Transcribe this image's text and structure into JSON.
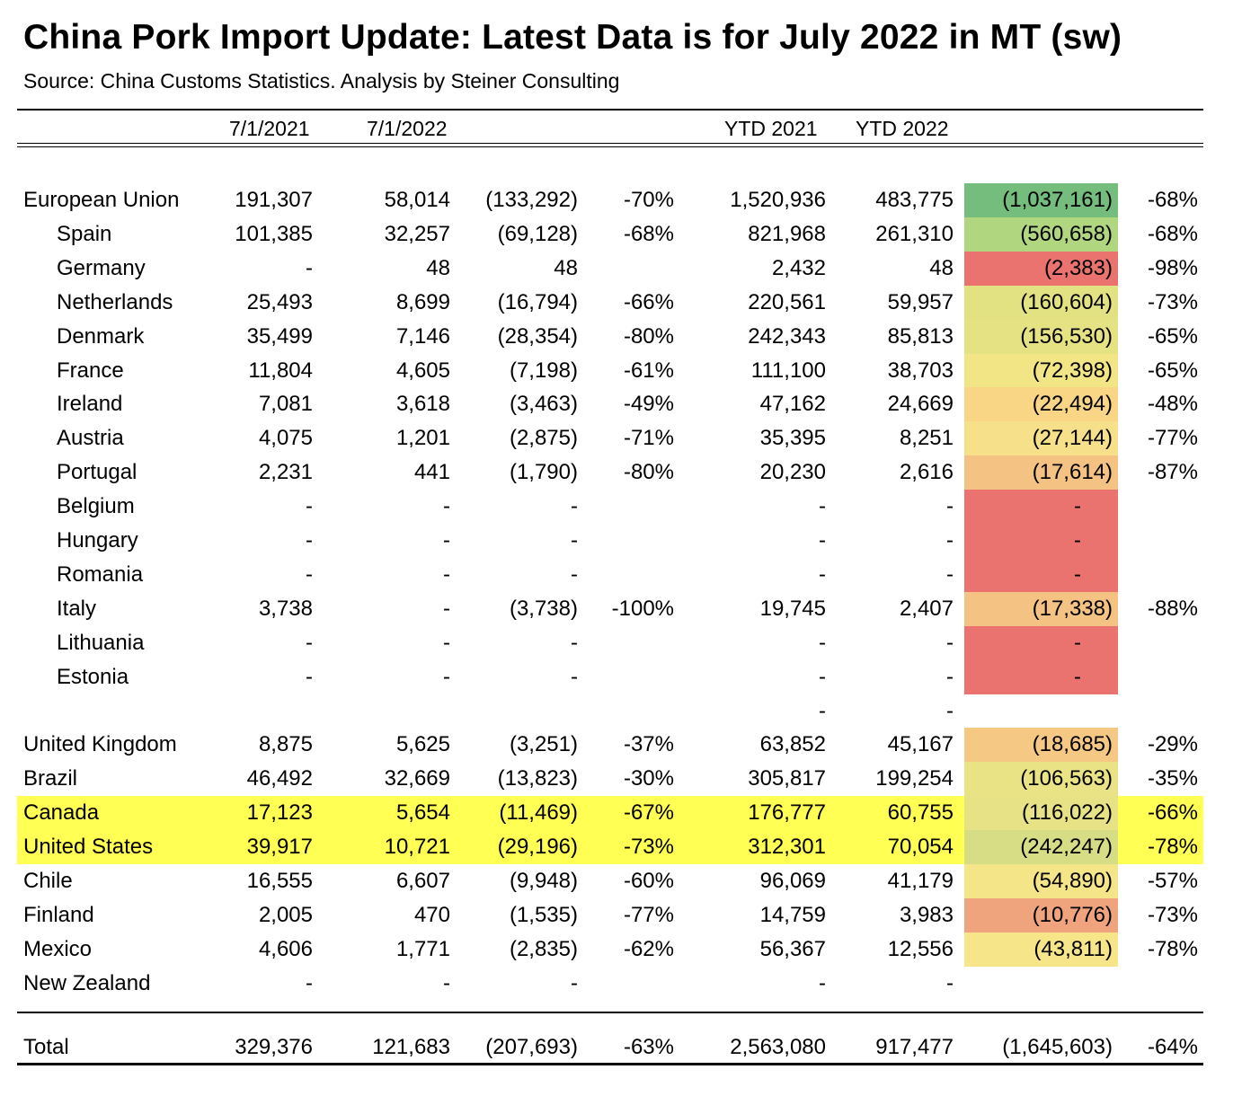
{
  "title": "China Pork Import Update:  Latest Data is for July 2022 in MT (sw)",
  "source": "Source:  China Customs Statistics.  Analysis by Steiner Consulting",
  "headers": {
    "month_2021": "7/1/2021",
    "month_2022": "7/1/2022",
    "ytd_2021": "YTD 2021",
    "ytd_2022": "YTD 2022"
  },
  "colors": {
    "highlight_yellow": "#ffff54",
    "scale_green_dark": "#74bd7c",
    "scale_green_light": "#b0d67f",
    "scale_yellow_green": "#e5e283",
    "scale_yellow": "#f5e787",
    "scale_orange": "#f6c982",
    "scale_red": "#ea736f"
  },
  "rows": [
    {
      "name": "European Union",
      "indent": false,
      "m2021": "191,307",
      "m2022": "58,014",
      "diff": "(133,292)",
      "pct": "-70%",
      "ytd2021": "1,520,936",
      "ytd2022": "483,775",
      "ytd_diff": "(1,037,161)",
      "ytd_pct": "-68%",
      "color": "#74bd7c",
      "highlight": false
    },
    {
      "name": "Spain",
      "indent": true,
      "m2021": "101,385",
      "m2022": "32,257",
      "diff": "(69,128)",
      "pct": "-68%",
      "ytd2021": "821,968",
      "ytd2022": "261,310",
      "ytd_diff": "(560,658)",
      "ytd_pct": "-68%",
      "color": "#b0d67f",
      "highlight": false
    },
    {
      "name": "Germany",
      "indent": true,
      "m2021": "-",
      "m2022": "48",
      "diff": "48",
      "pct": "",
      "ytd2021": "2,432",
      "ytd2022": "48",
      "ytd_diff": "(2,383)",
      "ytd_pct": "-98%",
      "color": "#ea736f",
      "highlight": false
    },
    {
      "name": "Netherlands",
      "indent": true,
      "m2021": "25,493",
      "m2022": "8,699",
      "diff": "(16,794)",
      "pct": "-66%",
      "ytd2021": "220,561",
      "ytd2022": "59,957",
      "ytd_diff": "(160,604)",
      "ytd_pct": "-73%",
      "color": "#e3e283",
      "highlight": false
    },
    {
      "name": "Denmark",
      "indent": true,
      "m2021": "35,499",
      "m2022": "7,146",
      "diff": "(28,354)",
      "pct": "-80%",
      "ytd2021": "242,343",
      "ytd2022": "85,813",
      "ytd_diff": "(156,530)",
      "ytd_pct": "-65%",
      "color": "#e4e283",
      "highlight": false
    },
    {
      "name": "France",
      "indent": true,
      "m2021": "11,804",
      "m2022": "4,605",
      "diff": "(7,198)",
      "pct": "-61%",
      "ytd2021": "111,100",
      "ytd2022": "38,703",
      "ytd_diff": "(72,398)",
      "ytd_pct": "-65%",
      "color": "#f2e585",
      "highlight": false
    },
    {
      "name": "Ireland",
      "indent": true,
      "m2021": "7,081",
      "m2022": "3,618",
      "diff": "(3,463)",
      "pct": "-49%",
      "ytd2021": "47,162",
      "ytd2022": "24,669",
      "ytd_diff": "(22,494)",
      "ytd_pct": "-48%",
      "color": "#f8d686",
      "highlight": false
    },
    {
      "name": "Austria",
      "indent": true,
      "m2021": "4,075",
      "m2022": "1,201",
      "diff": "(2,875)",
      "pct": "-71%",
      "ytd2021": "35,395",
      "ytd2022": "8,251",
      "ytd_diff": "(27,144)",
      "ytd_pct": "-77%",
      "color": "#f7e08a",
      "highlight": false
    },
    {
      "name": "Portugal",
      "indent": true,
      "m2021": "2,231",
      "m2022": "441",
      "diff": "(1,790)",
      "pct": "-80%",
      "ytd2021": "20,230",
      "ytd2022": "2,616",
      "ytd_diff": "(17,614)",
      "ytd_pct": "-87%",
      "color": "#f4c384",
      "highlight": false
    },
    {
      "name": "Belgium",
      "indent": true,
      "m2021": "-",
      "m2022": "-",
      "diff": "-",
      "pct": "",
      "ytd2021": "-",
      "ytd2022": "-",
      "ytd_diff": "-",
      "ytd_pct": "",
      "color": "#ea736f",
      "highlight": false
    },
    {
      "name": "Hungary",
      "indent": true,
      "m2021": "-",
      "m2022": "-",
      "diff": "-",
      "pct": "",
      "ytd2021": "-",
      "ytd2022": "-",
      "ytd_diff": "-",
      "ytd_pct": "",
      "color": "#ea736f",
      "highlight": false
    },
    {
      "name": "Romania",
      "indent": true,
      "m2021": "-",
      "m2022": "-",
      "diff": "-",
      "pct": "",
      "ytd2021": "-",
      "ytd2022": "-",
      "ytd_diff": "-",
      "ytd_pct": "",
      "color": "#ea736f",
      "highlight": false
    },
    {
      "name": "Italy",
      "indent": true,
      "m2021": "3,738",
      "m2022": "-",
      "diff": "(3,738)",
      "pct": "-100%",
      "ytd2021": "19,745",
      "ytd2022": "2,407",
      "ytd_diff": "(17,338)",
      "ytd_pct": "-88%",
      "color": "#f4c384",
      "highlight": false
    },
    {
      "name": "Lithuania",
      "indent": true,
      "m2021": "-",
      "m2022": "-",
      "diff": "-",
      "pct": "",
      "ytd2021": "-",
      "ytd2022": "-",
      "ytd_diff": "-",
      "ytd_pct": "",
      "color": "#ea736f",
      "highlight": false
    },
    {
      "name": "Estonia",
      "indent": true,
      "m2021": "-",
      "m2022": "-",
      "diff": "-",
      "pct": "",
      "ytd2021": "-",
      "ytd2022": "-",
      "ytd_diff": "-",
      "ytd_pct": "",
      "color": "#ea736f",
      "highlight": false
    },
    {
      "name": "",
      "indent": false,
      "m2021": "",
      "m2022": "",
      "diff": "",
      "pct": "",
      "ytd2021": "-",
      "ytd2022": "-",
      "ytd_diff": "",
      "ytd_pct": "",
      "color": "",
      "highlight": false
    },
    {
      "name": "United Kingdom",
      "indent": false,
      "m2021": "8,875",
      "m2022": "5,625",
      "diff": "(3,251)",
      "pct": "-37%",
      "ytd2021": "63,852",
      "ytd2022": "45,167",
      "ytd_diff": "(18,685)",
      "ytd_pct": "-29%",
      "color": "#f5c884",
      "highlight": false
    },
    {
      "name": "Brazil",
      "indent": false,
      "m2021": "46,492",
      "m2022": "32,669",
      "diff": "(13,823)",
      "pct": "-30%",
      "ytd2021": "305,817",
      "ytd2022": "199,254",
      "ytd_diff": "(106,563)",
      "ytd_pct": "-35%",
      "color": "#e9e385",
      "highlight": false
    },
    {
      "name": "Canada",
      "indent": false,
      "m2021": "17,123",
      "m2022": "5,654",
      "diff": "(11,469)",
      "pct": "-67%",
      "ytd2021": "176,777",
      "ytd2022": "60,755",
      "ytd_diff": "(116,022)",
      "ytd_pct": "-66%",
      "color": "#e7e285",
      "highlight": true
    },
    {
      "name": "United States",
      "indent": false,
      "m2021": "39,917",
      "m2022": "10,721",
      "diff": "(29,196)",
      "pct": "-73%",
      "ytd2021": "312,301",
      "ytd2022": "70,054",
      "ytd_diff": "(242,247)",
      "ytd_pct": "-78%",
      "color": "#d6dd84",
      "highlight": true
    },
    {
      "name": "Chile",
      "indent": false,
      "m2021": "16,555",
      "m2022": "6,607",
      "diff": "(9,948)",
      "pct": "-60%",
      "ytd2021": "96,069",
      "ytd2022": "41,179",
      "ytd_diff": "(54,890)",
      "ytd_pct": "-57%",
      "color": "#f4e588",
      "highlight": false
    },
    {
      "name": "Finland",
      "indent": false,
      "m2021": "2,005",
      "m2022": "470",
      "diff": "(1,535)",
      "pct": "-77%",
      "ytd2021": "14,759",
      "ytd2022": "3,983",
      "ytd_diff": "(10,776)",
      "ytd_pct": "-73%",
      "color": "#efa47d",
      "highlight": false
    },
    {
      "name": "Mexico",
      "indent": false,
      "m2021": "4,606",
      "m2022": "1,771",
      "diff": "(2,835)",
      "pct": "-62%",
      "ytd2021": "56,367",
      "ytd2022": "12,556",
      "ytd_diff": "(43,811)",
      "ytd_pct": "-78%",
      "color": "#f6e689",
      "highlight": false
    },
    {
      "name": "New Zealand",
      "indent": false,
      "m2021": "-",
      "m2022": "-",
      "diff": "-",
      "pct": "",
      "ytd2021": "-",
      "ytd2022": "-",
      "ytd_diff": "",
      "ytd_pct": "",
      "color": "",
      "highlight": false
    }
  ],
  "total": {
    "name": "Total",
    "m2021": "329,376",
    "m2022": "121,683",
    "diff": "(207,693)",
    "pct": "-63%",
    "ytd2021": "2,563,080",
    "ytd2022": "917,477",
    "ytd_diff": "(1,645,603)",
    "ytd_pct": "-64%"
  }
}
